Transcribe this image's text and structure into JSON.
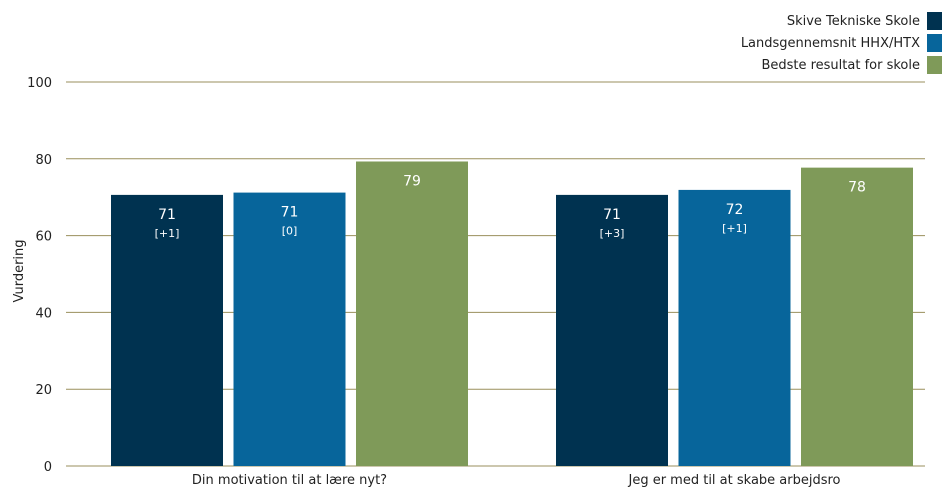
{
  "chart_data": {
    "type": "bar",
    "title": "",
    "xlabel": "",
    "ylabel": "Vurdering",
    "ylim": [
      0,
      100
    ],
    "yticks": [
      0,
      20,
      40,
      60,
      80,
      100
    ],
    "grid": true,
    "legend_position": "top-right",
    "categories": [
      "Din motivation til at lære nyt?",
      "Jeg er med til at skabe arbejdsro"
    ],
    "series": [
      {
        "name": "Skive Tekniske Skole",
        "color": "#003250",
        "values": [
          70.6,
          70.6
        ],
        "labels": [
          "71",
          "71"
        ],
        "diffs": [
          "[+1]",
          "[+3]"
        ]
      },
      {
        "name": "Landsgennemsnit HHX/HTX",
        "color": "#07659b",
        "values": [
          71.2,
          71.9
        ],
        "labels": [
          "71",
          "72"
        ],
        "diffs": [
          "[0]",
          "[+1]"
        ]
      },
      {
        "name": "Bedste resultat for skole",
        "color": "#7f9a59",
        "values": [
          79.3,
          77.7
        ],
        "labels": [
          "79",
          "78"
        ],
        "diffs": [
          "",
          ""
        ]
      }
    ]
  }
}
